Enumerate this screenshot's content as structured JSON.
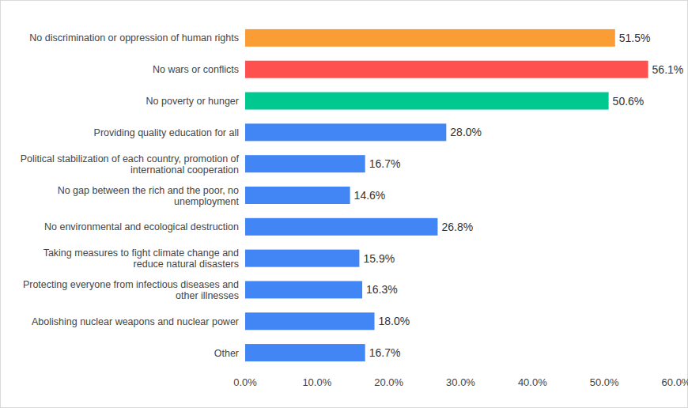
{
  "chart_data": {
    "type": "bar",
    "orientation": "horizontal",
    "categories": [
      "No discrimination or oppression of human rights",
      "No wars or conflicts",
      "No poverty or hunger",
      "Providing quality education for all",
      "Political stabilization of each country, promotion of international cooperation",
      "No gap between the rich and the poor, no unemployment",
      "No environmental and ecological destruction",
      "Taking measures to fight climate change and reduce natural disasters",
      "Protecting everyone from infectious diseases and other illnesses",
      "Abolishing nuclear weapons and nuclear power",
      "Other"
    ],
    "values": [
      51.5,
      56.1,
      50.6,
      28.0,
      16.7,
      14.6,
      26.8,
      15.9,
      16.3,
      18.0,
      16.7
    ],
    "value_labels": [
      "51.5%",
      "56.1%",
      "50.6%",
      "28.0%",
      "16.7%",
      "14.6%",
      "26.8%",
      "15.9%",
      "16.3%",
      "18.0%",
      "16.7%"
    ],
    "colors": [
      "#fa9d34",
      "#ff5050",
      "#00c990",
      "#4285f4",
      "#4285f4",
      "#4285f4",
      "#4285f4",
      "#4285f4",
      "#4285f4",
      "#4285f4",
      "#4285f4"
    ],
    "xlim": [
      0,
      60
    ],
    "xticks": [
      {
        "value": 0,
        "label": "0.0%"
      },
      {
        "value": 10,
        "label": "10.0%"
      },
      {
        "value": 20,
        "label": "20.0%"
      },
      {
        "value": 30,
        "label": "30.0%"
      },
      {
        "value": 40,
        "label": "40.0%"
      },
      {
        "value": 50,
        "label": "50.0%"
      },
      {
        "value": 60,
        "label": "60.0%"
      }
    ],
    "grid": false,
    "data_labels": true
  }
}
